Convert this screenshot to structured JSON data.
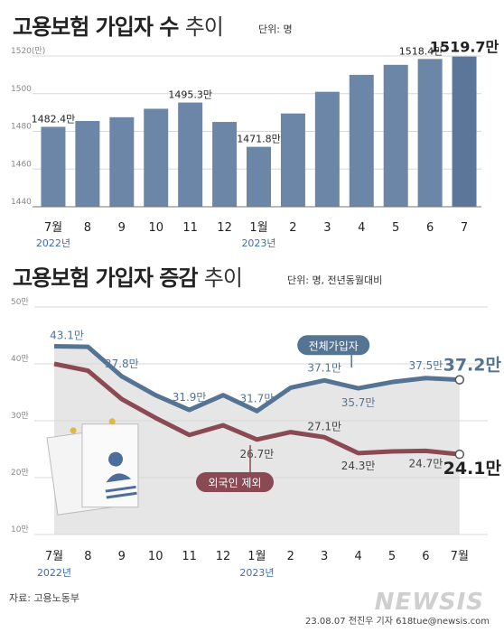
{
  "chart1": {
    "title_bold": "고용보험 가입자 수",
    "title_light": "추이",
    "unit": "단위: 명",
    "y_tick_labels": [
      "1520(만)",
      "1500",
      "1480",
      "1460",
      "1440"
    ],
    "x_labels": [
      "7월",
      "8",
      "9",
      "10",
      "11",
      "12",
      "1월",
      "2",
      "3",
      "4",
      "5",
      "6",
      "7"
    ],
    "year_labels": [
      "2022년",
      "2023년"
    ],
    "data_labels": [
      "1482.4만",
      "1495.3만",
      "1471.8만",
      "1518.4만",
      "1519.7만"
    ],
    "colors": {
      "bar": "#6c86a8",
      "bar_last": "#5b7698",
      "year": "#3f6cb0"
    }
  },
  "chart2": {
    "title_bold": "고용보험 가입자 증감",
    "title_light": "추이",
    "unit": "단위: 명, 전년동월대비",
    "y_tick_labels": [
      "50만",
      "40만",
      "30만",
      "20만",
      "10만"
    ],
    "x_labels": [
      "7월",
      "8",
      "9",
      "10",
      "11",
      "12",
      "1월",
      "2",
      "3",
      "4",
      "5",
      "6",
      "7월"
    ],
    "year_labels": [
      "2022년",
      "2023년"
    ],
    "total_label": "전체가입자",
    "foreign_label": "외국인 제외",
    "total_data_labels": [
      "43.1만",
      "37.8만",
      "31.9만",
      "31.7만",
      "37.1만",
      "35.7만",
      "37.5만",
      "37.2만"
    ],
    "foreign_data_labels": [
      "26.7만",
      "27.1만",
      "24.3만",
      "24.7만",
      "24.1만"
    ],
    "colors": {
      "total": "#557494",
      "foreign": "#8b4a53",
      "area": "#e6e6e6"
    }
  },
  "chart_data": [
    {
      "type": "bar",
      "title": "고용보험 가입자 수 추이",
      "unit": "명",
      "categories": [
        "7월",
        "8",
        "9",
        "10",
        "11",
        "12",
        "1월",
        "2",
        "3",
        "4",
        "5",
        "6",
        "7"
      ],
      "values": [
        1482.4,
        1485.5,
        1487.5,
        1492.0,
        1495.3,
        1485.0,
        1471.8,
        1489.5,
        1501.0,
        1510.0,
        1515.3,
        1518.4,
        1519.7
      ],
      "ylim": [
        1440,
        1520
      ],
      "yticks": [
        1440,
        1460,
        1480,
        1500,
        1520
      ],
      "grid": true
    },
    {
      "type": "line",
      "title": "고용보험 가입자 증감 추이",
      "unit": "명, 전년동월대비",
      "categories": [
        "7월",
        "8",
        "9",
        "10",
        "11",
        "12",
        "1월",
        "2",
        "3",
        "4",
        "5",
        "6",
        "7월"
      ],
      "ylim": [
        10,
        50
      ],
      "yticks": [
        10,
        20,
        30,
        40,
        50
      ],
      "grid": true,
      "series": [
        {
          "name": "전체가입자",
          "values": [
            43.1,
            43.0,
            37.8,
            34.5,
            31.9,
            34.5,
            31.7,
            35.8,
            37.1,
            35.7,
            36.8,
            37.5,
            37.2
          ]
        },
        {
          "name": "외국인 제외",
          "values": [
            40.0,
            38.8,
            33.8,
            30.5,
            27.5,
            29.2,
            26.7,
            28.0,
            27.1,
            24.3,
            24.6,
            24.7,
            24.1
          ]
        }
      ]
    }
  ]
}
